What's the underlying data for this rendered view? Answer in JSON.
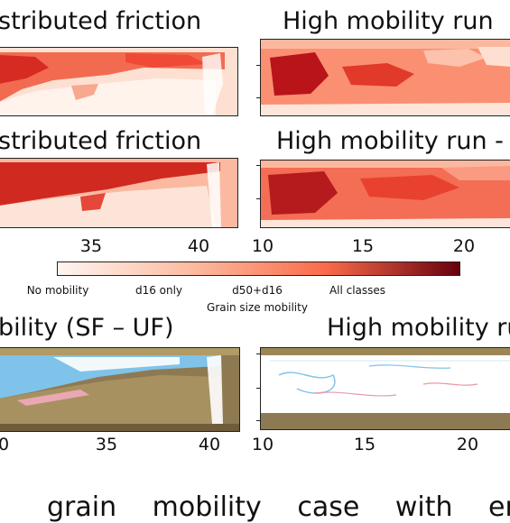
{
  "figure": {
    "row1": {
      "left_title": "stributed friction",
      "right_title": "High mobility run"
    },
    "row2": {
      "left_title": "stributed friction",
      "right_title": "High mobility run -"
    },
    "xticks_left": [
      "35",
      "40"
    ],
    "xticks_right": [
      "10",
      "15",
      "20"
    ],
    "colorbar": {
      "title": "Grain size mobility",
      "labels": [
        "No mobility",
        "d16 only",
        "d50+d16",
        "All classes"
      ],
      "colors": [
        "#fff5f0",
        "#fcbba1",
        "#fb6a4a",
        "#67000d"
      ]
    },
    "row3": {
      "left_title": "bility (SF – UF)",
      "right_title": "High mobility ru"
    },
    "xticks_bottom_left": [
      "0",
      "35",
      "40"
    ],
    "xticks_bottom_right": [
      "10",
      "15",
      "20"
    ]
  },
  "caption": "grain mobility case with en"
}
